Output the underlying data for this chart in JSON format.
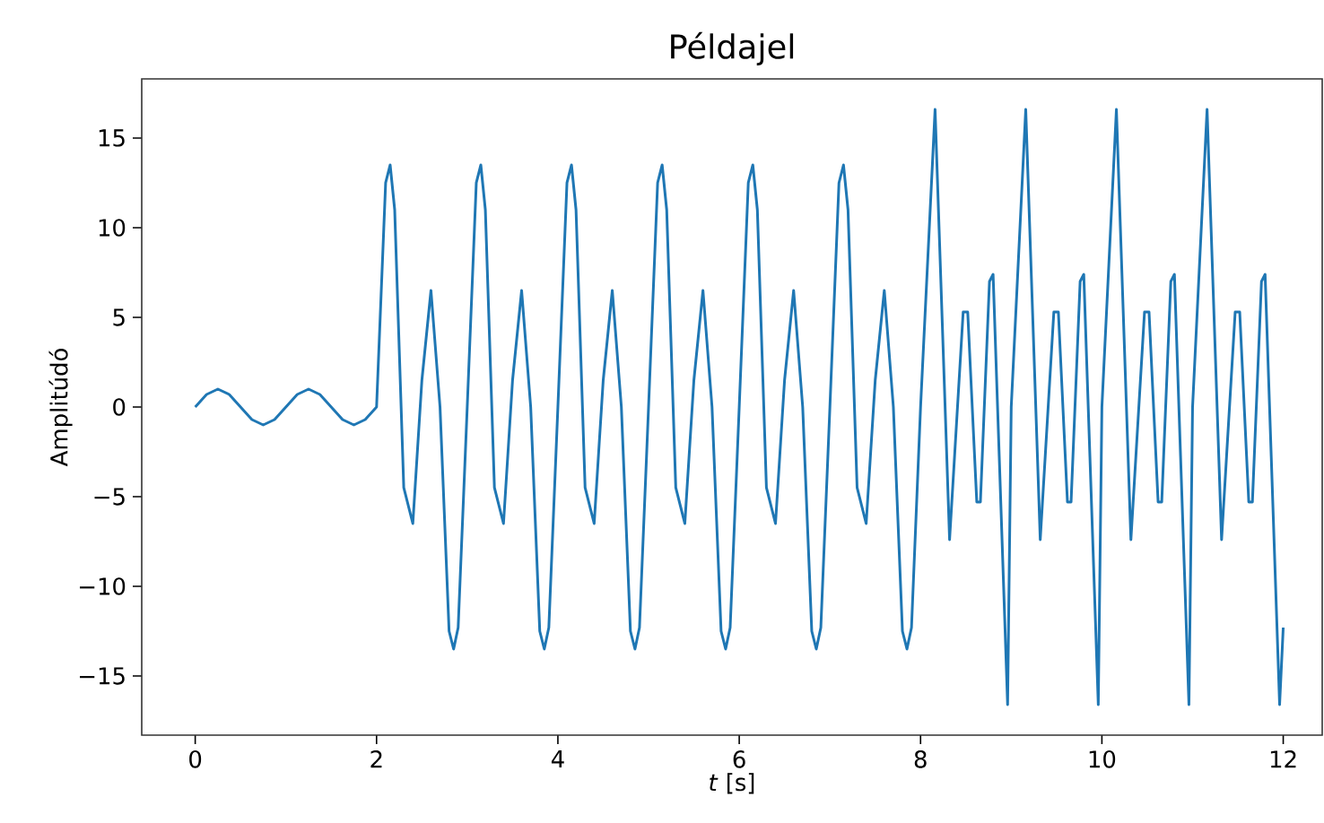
{
  "chart_data": {
    "type": "line",
    "title": "Példajel",
    "xlabel": "*t* [s]",
    "ylabel": "Amplitúdó",
    "xlim": [
      -0.59,
      12.43
    ],
    "ylim": [
      -18.3,
      18.3
    ],
    "xticks": [
      0,
      2,
      4,
      6,
      8,
      10,
      12
    ],
    "yticks": [
      {
        "value": -15,
        "label": "−15"
      },
      {
        "value": -10,
        "label": "−10"
      },
      {
        "value": -5,
        "label": "−5"
      },
      0,
      5,
      10,
      15
    ],
    "grid": false,
    "marker": "none",
    "line_style": "solid",
    "series": [
      {
        "color": "#1f77b4",
        "x": [
          0,
          0.125,
          0.25,
          0.375,
          0.5,
          0.625,
          0.75,
          0.875,
          1,
          1.125,
          1.25,
          1.375,
          1.5,
          1.625,
          1.75,
          1.875,
          2,
          2.1,
          2.15,
          2.2,
          2.3,
          2.4,
          2.5,
          2.6,
          2.7,
          2.8,
          2.85,
          2.9,
          3,
          3.1,
          3.15,
          3.2,
          3.3,
          3.4,
          3.5,
          3.6,
          3.7,
          3.8,
          3.85,
          3.9,
          4,
          4.1,
          4.15,
          4.2,
          4.3,
          4.4,
          4.5,
          4.6,
          4.7,
          4.8,
          4.85,
          4.9,
          5,
          5.1,
          5.15,
          5.2,
          5.3,
          5.4,
          5.5,
          5.6,
          5.7,
          5.8,
          5.85,
          5.9,
          6,
          6.1,
          6.15,
          6.2,
          6.3,
          6.4,
          6.5,
          6.6,
          6.7,
          6.8,
          6.85,
          6.9,
          7,
          7.1,
          7.15,
          7.2,
          7.3,
          7.4,
          7.5,
          7.6,
          7.7,
          7.8,
          7.85,
          7.9,
          8,
          8.16,
          8.32,
          8.47,
          8.52,
          8.62,
          8.66,
          8.76,
          8.8,
          8.96,
          9,
          9.16,
          9.32,
          9.47,
          9.52,
          9.62,
          9.66,
          9.76,
          9.8,
          9.96,
          10,
          10.16,
          10.32,
          10.47,
          10.52,
          10.62,
          10.66,
          10.76,
          10.8,
          10.96,
          11,
          11.16,
          11.32,
          11.47,
          11.52,
          11.62,
          11.66,
          11.76,
          11.8,
          11.96,
          12
        ],
        "values": [
          0,
          0.7,
          1,
          0.7,
          0,
          -0.7,
          -1,
          -0.7,
          0,
          0.7,
          1,
          0.7,
          0,
          -0.7,
          -1,
          -0.7,
          0,
          12.5,
          13.5,
          11,
          -4.5,
          -6.5,
          1.5,
          6.5,
          0,
          -12.5,
          -13.5,
          -12.3,
          0,
          12.5,
          13.5,
          11,
          -4.5,
          -6.5,
          1.5,
          6.5,
          0,
          -12.5,
          -13.5,
          -12.3,
          0,
          12.5,
          13.5,
          11,
          -4.5,
          -6.5,
          1.5,
          6.5,
          0,
          -12.5,
          -13.5,
          -12.3,
          0,
          12.5,
          13.5,
          11,
          -4.5,
          -6.5,
          1.5,
          6.5,
          0,
          -12.5,
          -13.5,
          -12.3,
          0,
          12.5,
          13.5,
          11,
          -4.5,
          -6.5,
          1.5,
          6.5,
          0,
          -12.5,
          -13.5,
          -12.3,
          0,
          12.5,
          13.5,
          11,
          -4.5,
          -6.5,
          1.5,
          6.5,
          0,
          -12.5,
          -13.5,
          -12.3,
          0,
          16.6,
          -7.4,
          5.3,
          5.3,
          -5.3,
          -5.3,
          7,
          7.4,
          -16.6,
          0,
          16.6,
          -7.4,
          5.3,
          5.3,
          -5.3,
          -5.3,
          7,
          7.4,
          -16.6,
          0,
          16.6,
          -7.4,
          5.3,
          5.3,
          -5.3,
          -5.3,
          7,
          7.4,
          -16.6,
          0,
          16.6,
          -7.4,
          5.3,
          5.3,
          -5.3,
          -5.3,
          7,
          7.4,
          -16.6,
          -12.3
        ]
      }
    ]
  }
}
